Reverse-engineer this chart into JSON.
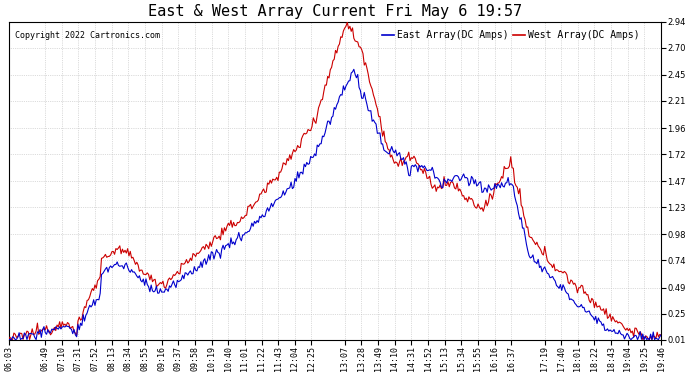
{
  "title": "East & West Array Current Fri May 6 19:57",
  "copyright": "Copyright 2022 Cartronics.com",
  "legend_east": "East Array(DC Amps)",
  "legend_west": "West Array(DC Amps)",
  "east_color": "#0000CC",
  "west_color": "#CC0000",
  "background_color": "#FFFFFF",
  "grid_color": "#BBBBBB",
  "ylim": [
    0.01,
    2.94
  ],
  "yticks": [
    0.01,
    0.25,
    0.49,
    0.74,
    0.98,
    1.23,
    1.47,
    1.72,
    1.96,
    2.21,
    2.45,
    2.7,
    2.94
  ],
  "xtick_labels": [
    "06:03",
    "06:49",
    "07:10",
    "07:31",
    "07:52",
    "08:13",
    "08:34",
    "08:55",
    "09:16",
    "09:37",
    "09:58",
    "10:19",
    "10:40",
    "11:01",
    "11:22",
    "11:43",
    "12:04",
    "12:25",
    "13:07",
    "13:28",
    "13:49",
    "14:10",
    "14:31",
    "14:52",
    "15:13",
    "15:34",
    "15:55",
    "16:16",
    "16:37",
    "17:19",
    "17:40",
    "18:01",
    "18:22",
    "18:43",
    "19:04",
    "19:25",
    "19:46"
  ],
  "title_fontsize": 11,
  "axis_fontsize": 6,
  "copyright_fontsize": 6,
  "legend_fontsize": 7,
  "line_width": 0.8
}
